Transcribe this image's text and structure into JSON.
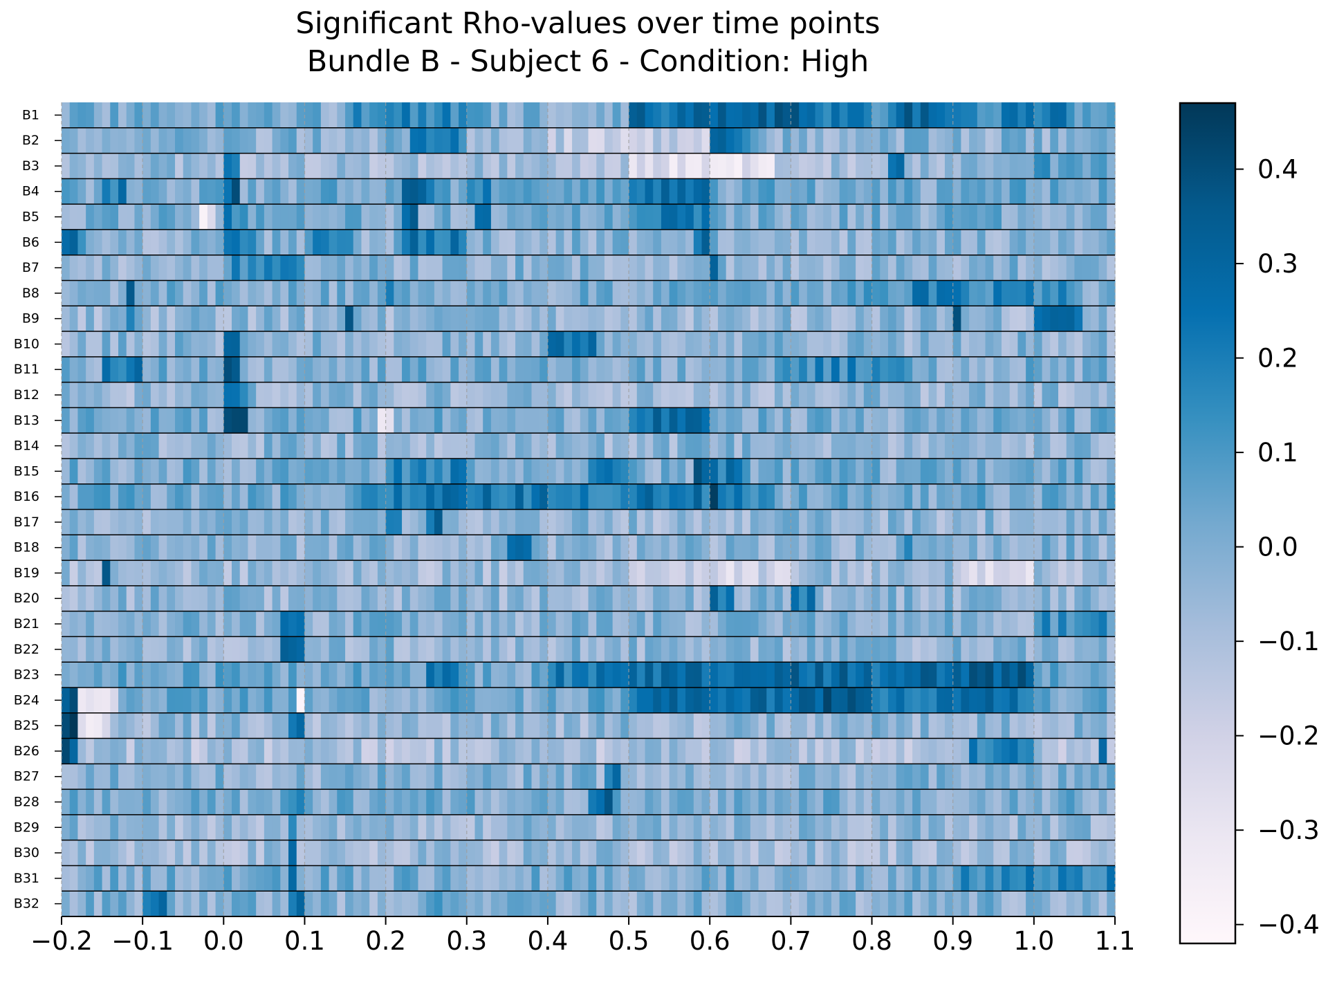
{
  "chart_data": {
    "type": "heatmap",
    "title": "Significant Rho-values over time points",
    "subtitle": "Bundle B - Subject 6 - Condition: High",
    "xlabel": "",
    "ylabel": "",
    "xlim": [
      -0.2,
      1.1
    ],
    "x_step": 0.01,
    "x_ticks": [
      -0.2,
      -0.1,
      0.0,
      0.1,
      0.2,
      0.3,
      0.4,
      0.5,
      0.6,
      0.7,
      0.8,
      0.9,
      1.0,
      1.1
    ],
    "x_tick_labels": [
      "−0.2",
      "−0.1",
      "0.0",
      "0.1",
      "0.2",
      "0.3",
      "0.4",
      "0.5",
      "0.6",
      "0.7",
      "0.8",
      "0.9",
      "1.0",
      "1.1"
    ],
    "vertical_gridlines_dashed": true,
    "rows": [
      "B1",
      "B2",
      "B3",
      "B4",
      "B5",
      "B6",
      "B7",
      "B8",
      "B9",
      "B10",
      "B11",
      "B12",
      "B13",
      "B14",
      "B15",
      "B16",
      "B17",
      "B18",
      "B19",
      "B20",
      "B21",
      "B22",
      "B23",
      "B24",
      "B25",
      "B26",
      "B27",
      "B28",
      "B29",
      "B30",
      "B31",
      "B32"
    ],
    "colormap": "PuBu",
    "colorscale": [
      "#fff7fb",
      "#ece7f2",
      "#d0d1e6",
      "#a6bddb",
      "#74a9cf",
      "#3690c0",
      "#0570b0",
      "#045a8d",
      "#023858"
    ],
    "vmin": -0.42,
    "vmax": 0.47,
    "colorbar_ticks": [
      0.4,
      0.3,
      0.2,
      0.1,
      0.0,
      -0.1,
      -0.2,
      -0.3,
      -0.4
    ],
    "colorbar_tick_labels": [
      "0.4",
      "0.3",
      "0.2",
      "0.1",
      "0.0",
      "−0.1",
      "−0.2",
      "−0.3",
      "−0.4"
    ],
    "row_profiles": [
      {
        "row": "B1",
        "base": 0.0,
        "segments": [
          [
            0.15,
            0.33,
            0.16
          ],
          [
            0.5,
            0.62,
            0.26
          ],
          [
            0.62,
            0.72,
            0.33
          ],
          [
            0.72,
            0.8,
            0.22
          ],
          [
            0.82,
            0.92,
            0.28
          ],
          [
            0.92,
            1.05,
            0.18
          ]
        ]
      },
      {
        "row": "B2",
        "base": -0.02,
        "segments": [
          [
            0.23,
            0.3,
            0.16
          ],
          [
            0.4,
            0.6,
            -0.15
          ],
          [
            0.6,
            0.65,
            0.25
          ]
        ]
      },
      {
        "row": "B3",
        "base": -0.07,
        "segments": [
          [
            0.0,
            0.02,
            0.3
          ],
          [
            0.5,
            0.68,
            -0.28
          ],
          [
            0.82,
            0.84,
            0.22
          ],
          [
            0.96,
            1.1,
            0.08
          ]
        ]
      },
      {
        "row": "B4",
        "base": 0.02,
        "segments": [
          [
            -0.15,
            -0.12,
            0.22
          ],
          [
            0.0,
            0.02,
            0.3
          ],
          [
            0.22,
            0.26,
            0.3
          ],
          [
            0.3,
            0.33,
            0.2
          ],
          [
            0.5,
            0.58,
            0.24
          ],
          [
            0.58,
            0.6,
            0.38
          ]
        ]
      },
      {
        "row": "B5",
        "base": 0.0,
        "segments": [
          [
            -0.03,
            -0.01,
            -0.35
          ],
          [
            0.0,
            0.03,
            0.2
          ],
          [
            0.22,
            0.24,
            0.34
          ],
          [
            0.31,
            0.33,
            0.3
          ],
          [
            0.5,
            0.6,
            0.2
          ]
        ]
      },
      {
        "row": "B6",
        "base": -0.03,
        "segments": [
          [
            -0.2,
            -0.17,
            0.22
          ],
          [
            0.0,
            0.04,
            0.16
          ],
          [
            0.1,
            0.16,
            0.14
          ],
          [
            0.22,
            0.3,
            0.22
          ],
          [
            0.58,
            0.6,
            0.28
          ]
        ]
      },
      {
        "row": "B7",
        "base": -0.03,
        "segments": [
          [
            0.0,
            0.1,
            0.12
          ],
          [
            0.6,
            0.61,
            0.28
          ]
        ]
      },
      {
        "row": "B8",
        "base": 0.0,
        "segments": [
          [
            -0.12,
            -0.11,
            0.35
          ],
          [
            0.2,
            0.21,
            0.28
          ],
          [
            0.75,
            0.85,
            0.1
          ],
          [
            0.85,
            0.9,
            0.2
          ],
          [
            0.9,
            1.05,
            0.16
          ]
        ]
      },
      {
        "row": "B9",
        "base": -0.05,
        "segments": [
          [
            -0.12,
            -0.11,
            0.28
          ],
          [
            0.15,
            0.16,
            0.28
          ],
          [
            0.9,
            0.91,
            0.33
          ],
          [
            1.0,
            1.06,
            0.22
          ]
        ]
      },
      {
        "row": "B10",
        "base": -0.03,
        "segments": [
          [
            0.0,
            0.02,
            0.35
          ],
          [
            0.4,
            0.46,
            0.2
          ]
        ]
      },
      {
        "row": "B11",
        "base": 0.0,
        "segments": [
          [
            -0.15,
            -0.1,
            0.2
          ],
          [
            0.0,
            0.02,
            0.33
          ],
          [
            0.68,
            0.85,
            0.15
          ]
        ]
      },
      {
        "row": "B12",
        "base": -0.05,
        "segments": [
          [
            0.0,
            0.03,
            0.2
          ]
        ]
      },
      {
        "row": "B13",
        "base": 0.0,
        "segments": [
          [
            0.0,
            0.03,
            0.33
          ],
          [
            0.19,
            0.21,
            -0.25
          ],
          [
            0.5,
            0.6,
            0.26
          ]
        ]
      },
      {
        "row": "B14",
        "base": -0.04,
        "segments": []
      },
      {
        "row": "B15",
        "base": 0.0,
        "segments": [
          [
            0.2,
            0.3,
            0.16
          ],
          [
            0.45,
            0.5,
            0.15
          ],
          [
            0.58,
            0.6,
            0.38
          ],
          [
            0.6,
            0.65,
            0.22
          ]
        ]
      },
      {
        "row": "B16",
        "base": 0.02,
        "segments": [
          [
            0.15,
            0.2,
            0.14
          ],
          [
            0.2,
            0.6,
            0.22
          ],
          [
            0.58,
            0.61,
            0.36
          ],
          [
            0.61,
            0.68,
            0.16
          ]
        ]
      },
      {
        "row": "B17",
        "base": -0.05,
        "segments": [
          [
            0.2,
            0.22,
            0.3
          ],
          [
            0.25,
            0.27,
            0.28
          ]
        ]
      },
      {
        "row": "B18",
        "base": -0.03,
        "segments": [
          [
            0.35,
            0.38,
            0.2
          ],
          [
            0.84,
            0.85,
            0.28
          ]
        ]
      },
      {
        "row": "B19",
        "base": -0.07,
        "segments": [
          [
            -0.15,
            -0.14,
            0.35
          ],
          [
            0.5,
            0.7,
            -0.2
          ],
          [
            0.9,
            1.0,
            -0.22
          ]
        ]
      },
      {
        "row": "B20",
        "base": -0.04,
        "segments": [
          [
            0.6,
            0.63,
            0.22
          ],
          [
            0.7,
            0.73,
            0.2
          ]
        ]
      },
      {
        "row": "B21",
        "base": -0.02,
        "segments": [
          [
            0.07,
            0.1,
            0.25
          ],
          [
            1.0,
            1.1,
            0.12
          ]
        ]
      },
      {
        "row": "B22",
        "base": -0.04,
        "segments": [
          [
            0.07,
            0.1,
            0.32
          ]
        ]
      },
      {
        "row": "B23",
        "base": 0.02,
        "segments": [
          [
            0.25,
            0.3,
            0.2
          ],
          [
            0.4,
            0.5,
            0.2
          ],
          [
            0.5,
            0.6,
            0.26
          ],
          [
            0.6,
            0.9,
            0.27
          ],
          [
            0.9,
            1.0,
            0.3
          ]
        ]
      },
      {
        "row": "B24",
        "base": 0.02,
        "segments": [
          [
            -0.2,
            -0.18,
            0.3
          ],
          [
            -0.18,
            -0.13,
            -0.28
          ],
          [
            0.09,
            0.1,
            -0.3
          ],
          [
            0.5,
            0.68,
            0.28
          ],
          [
            0.68,
            0.8,
            0.33
          ],
          [
            0.8,
            1.0,
            0.25
          ]
        ]
      },
      {
        "row": "B25",
        "base": -0.05,
        "segments": [
          [
            -0.2,
            -0.18,
            0.4
          ],
          [
            -0.18,
            -0.14,
            -0.3
          ],
          [
            0.08,
            0.1,
            0.28
          ]
        ]
      },
      {
        "row": "B26",
        "base": -0.1,
        "segments": [
          [
            -0.2,
            -0.18,
            0.38
          ],
          [
            0.92,
            1.0,
            0.16
          ],
          [
            1.08,
            1.09,
            0.28
          ]
        ]
      },
      {
        "row": "B27",
        "base": -0.03,
        "segments": [
          [
            0.47,
            0.49,
            0.28
          ]
        ]
      },
      {
        "row": "B28",
        "base": 0.0,
        "segments": [
          [
            0.08,
            0.1,
            0.2
          ],
          [
            0.45,
            0.48,
            0.3
          ]
        ]
      },
      {
        "row": "B29",
        "base": -0.05,
        "segments": [
          [
            0.08,
            0.09,
            0.2
          ]
        ]
      },
      {
        "row": "B30",
        "base": -0.07,
        "segments": [
          [
            0.08,
            0.09,
            0.22
          ]
        ]
      },
      {
        "row": "B31",
        "base": 0.0,
        "segments": [
          [
            0.08,
            0.09,
            0.22
          ],
          [
            0.9,
            1.1,
            0.16
          ]
        ]
      },
      {
        "row": "B32",
        "base": -0.02,
        "segments": [
          [
            -0.1,
            -0.07,
            0.22
          ],
          [
            0.08,
            0.1,
            0.22
          ],
          [
            0.25,
            0.3,
            0.12
          ]
        ]
      }
    ]
  }
}
